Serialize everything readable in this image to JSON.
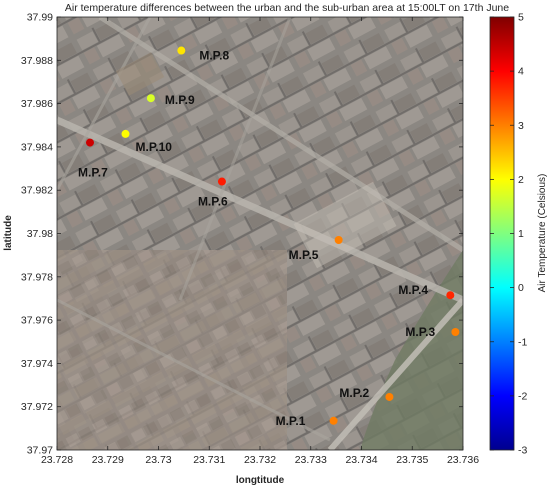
{
  "chart_data": {
    "type": "scatter",
    "title": "Air temperature differences between the urban and the sub-urban area at 15:00LT on 17th June",
    "xlabel": "longtitude",
    "ylabel": "latitude",
    "xlim": [
      23.728,
      23.736
    ],
    "ylim": [
      37.97,
      37.99
    ],
    "x_ticks": [
      23.728,
      23.729,
      23.73,
      23.731,
      23.732,
      23.733,
      23.734,
      23.735,
      23.736
    ],
    "x_tick_labels": [
      "23.728",
      "23.729",
      "23.73",
      "23.731",
      "23.732",
      "23.733",
      "23.734",
      "23.735",
      "23.736"
    ],
    "y_ticks": [
      37.97,
      37.972,
      37.974,
      37.976,
      37.978,
      37.98,
      37.982,
      37.984,
      37.986,
      37.988,
      37.99
    ],
    "y_tick_labels": [
      "37.97",
      "37.972",
      "37.974",
      "37.976",
      "37.978",
      "37.98",
      "37.982",
      "37.984",
      "37.986",
      "37.988",
      "37.99"
    ],
    "colorbar": {
      "label": "Air Temperature (Celsious)",
      "colormap": "jet",
      "range": [
        -3,
        5
      ],
      "ticks": [
        -3,
        -2,
        -1,
        0,
        1,
        2,
        3,
        4,
        5
      ],
      "tick_labels": [
        "-3",
        "-2",
        "-1",
        "0",
        "1",
        "2",
        "3",
        "4",
        "5"
      ]
    },
    "points": [
      {
        "label": "M.P.1",
        "x": 23.73345,
        "y": 37.97135,
        "value": 3.0
      },
      {
        "label": "M.P.2",
        "x": 23.73455,
        "y": 37.97245,
        "value": 3.0
      },
      {
        "label": "M.P.3",
        "x": 23.73585,
        "y": 37.97545,
        "value": 3.0
      },
      {
        "label": "M.P.4",
        "x": 23.73575,
        "y": 37.97715,
        "value": 3.7
      },
      {
        "label": "M.P.5",
        "x": 23.73355,
        "y": 37.9797,
        "value": 3.0
      },
      {
        "label": "M.P.6",
        "x": 23.73125,
        "y": 37.9824,
        "value": 3.8
      },
      {
        "label": "M.P.7",
        "x": 23.72865,
        "y": 37.9842,
        "value": 4.4
      },
      {
        "label": "M.P.8",
        "x": 23.73045,
        "y": 37.98845,
        "value": 2.2
      },
      {
        "label": "M.P.9",
        "x": 23.72985,
        "y": 37.98625,
        "value": 1.7
      },
      {
        "label": "M.P.10",
        "x": 23.72935,
        "y": 37.9846,
        "value": 2.0
      }
    ],
    "background": "aerial-city-map"
  }
}
